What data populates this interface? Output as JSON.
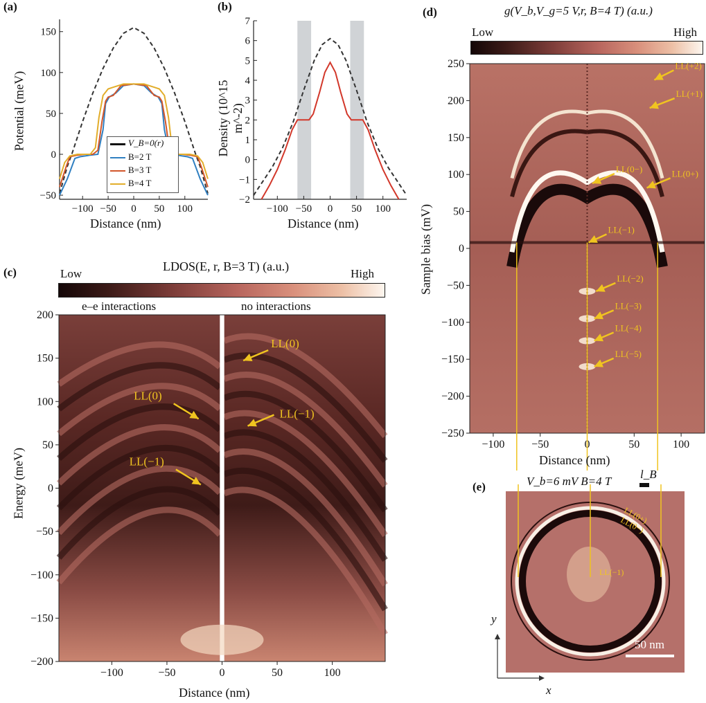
{
  "colors": {
    "dark": "#1d0c0c",
    "mid": "#b36b62",
    "light": "#fbf3ea",
    "line_b2": "#2f7fc1",
    "line_b3": "#d2562a",
    "line_b4": "#e2ad2a",
    "annotation": "#f0c420",
    "shade": "#d0d3d6"
  },
  "panel_a": {
    "label": "(a)",
    "ylabel": "Potential (meV)",
    "xlabel": "Distance (nm)",
    "legend": [
      "V_B=0(r)",
      "B=2 T",
      "B=3 T",
      "B=4 T"
    ]
  },
  "panel_b": {
    "label": "(b)",
    "ylabel": "Density (10^15 m^-2)",
    "xlabel": "Distance (nm)"
  },
  "panel_c": {
    "label": "(c)",
    "colorbar_title": "LDOS(E, r, B=3 T) (a.u.)",
    "colorbar_low": "Low",
    "colorbar_high": "High",
    "left_label": "e–e interactions",
    "right_label": "no interactions",
    "ylabel": "Energy (meV)",
    "xlabel": "Distance (nm)",
    "annotations": [
      "LL(0)",
      "LL(0)",
      "LL(−1)",
      "LL(−1)"
    ]
  },
  "panel_d": {
    "label": "(d)",
    "colorbar_title": "g(V_b,V_g=5 V,r, B=4 T) (a.u.)",
    "colorbar_low": "Low",
    "colorbar_high": "High",
    "ylabel": "Sample bias (mV)",
    "xlabel": "Distance (nm)",
    "annotations": [
      "LL(+2)",
      "LL(+1)",
      "LL(0−)",
      "LL(0+)",
      "LL(−1)",
      "LL(−2)",
      "LL(−3)",
      "LL(−4)",
      "LL(−5)"
    ]
  },
  "panel_e": {
    "label": "(e)",
    "title": "V_b=6 mV B=4 T",
    "lB_label": "l_B",
    "scalebar": "50 nm",
    "annotations": [
      "LL(0+)",
      "LL(0−)",
      "LL(−1)"
    ],
    "axis_x": "x",
    "axis_y": "y"
  },
  "chart_data": [
    {
      "type": "line",
      "panel": "a",
      "xlabel": "Distance (nm)",
      "ylabel": "Potential (meV)",
      "xlim": [
        -145,
        145
      ],
      "ylim": [
        -55,
        165
      ],
      "xticks": [
        -100,
        -50,
        0,
        50,
        100
      ],
      "yticks": [
        -50,
        0,
        50,
        100,
        150
      ],
      "legend_position": "bottom-right",
      "series": [
        {
          "name": "V_B=0(r)",
          "style": "dashed",
          "color": "#333333",
          "x": [
            -145,
            -130,
            -120,
            -100,
            -80,
            -60,
            -40,
            -20,
            0,
            20,
            40,
            60,
            80,
            100,
            120,
            130,
            145
          ],
          "y": [
            -48,
            -15,
            2,
            40,
            75,
            105,
            130,
            148,
            155,
            148,
            130,
            105,
            75,
            40,
            2,
            -15,
            -48
          ]
        },
        {
          "name": "B=2 T",
          "color": "#2f7fc1",
          "x": [
            -145,
            -130,
            -115,
            -105,
            -95,
            -85,
            -70,
            -60,
            -55,
            -48,
            -35,
            -20,
            0,
            20,
            35,
            48,
            55,
            60,
            70,
            85,
            95,
            105,
            115,
            130,
            145
          ],
          "y": [
            -50,
            -30,
            -5,
            -3,
            -2,
            -1,
            0,
            30,
            62,
            70,
            75,
            84,
            86,
            84,
            75,
            70,
            62,
            30,
            0,
            -1,
            -2,
            -3,
            -5,
            -30,
            -50
          ]
        },
        {
          "name": "B=3 T",
          "color": "#d2562a",
          "x": [
            -145,
            -132,
            -125,
            -110,
            -95,
            -80,
            -70,
            -62,
            -55,
            -50,
            -40,
            -25,
            0,
            25,
            40,
            50,
            55,
            62,
            70,
            80,
            95,
            110,
            125,
            132,
            145
          ],
          "y": [
            -40,
            -15,
            -3,
            -1,
            0,
            0,
            5,
            40,
            65,
            70,
            72,
            84,
            86,
            84,
            72,
            70,
            65,
            40,
            5,
            0,
            0,
            -1,
            -3,
            -15,
            -40
          ]
        },
        {
          "name": "B=4 T",
          "color": "#e2ad2a",
          "x": [
            -145,
            -135,
            -125,
            -110,
            -95,
            -85,
            -75,
            -68,
            -60,
            -50,
            -40,
            -20,
            0,
            20,
            40,
            50,
            60,
            68,
            75,
            85,
            95,
            110,
            125,
            135,
            145
          ],
          "y": [
            -30,
            -10,
            -2,
            0,
            0,
            0,
            8,
            45,
            72,
            80,
            82,
            86,
            86,
            86,
            82,
            80,
            72,
            45,
            8,
            0,
            0,
            0,
            -2,
            -10,
            -30
          ]
        }
      ]
    },
    {
      "type": "line",
      "panel": "b",
      "xlabel": "Distance (nm)",
      "ylabel": "Density (10^15 m^-2)",
      "xlim": [
        -145,
        145
      ],
      "ylim": [
        -2,
        7
      ],
      "xticks": [
        -100,
        -50,
        0,
        50,
        100
      ],
      "yticks": [
        -2,
        -1,
        0,
        1,
        2,
        3,
        4,
        5,
        6,
        7
      ],
      "shaded_x_ranges": [
        [
          -62,
          -36
        ],
        [
          38,
          64
        ]
      ],
      "series": [
        {
          "style": "dashed",
          "color": "#333333",
          "x": [
            -145,
            -130,
            -110,
            -90,
            -70,
            -50,
            -30,
            -15,
            0,
            15,
            30,
            50,
            70,
            90,
            110,
            130,
            145
          ],
          "y": [
            -1.8,
            -1.2,
            -0.4,
            0.6,
            1.9,
            3.5,
            5.0,
            5.8,
            6.1,
            5.8,
            5.0,
            3.5,
            1.9,
            0.6,
            -0.4,
            -1.2,
            -1.8
          ]
        },
        {
          "color": "#d2372a",
          "x": [
            -130,
            -115,
            -100,
            -85,
            -72,
            -62,
            -50,
            -40,
            -32,
            -20,
            -10,
            0,
            10,
            20,
            32,
            40,
            50,
            62,
            72,
            85,
            100,
            115,
            130
          ],
          "y": [
            -2.0,
            -1.3,
            -0.5,
            0.5,
            1.5,
            2.0,
            2.0,
            2.0,
            2.3,
            3.4,
            4.4,
            4.9,
            4.4,
            3.4,
            2.3,
            2.0,
            2.0,
            2.0,
            1.5,
            0.5,
            -0.5,
            -1.3,
            -2.0
          ]
        }
      ]
    },
    {
      "type": "heatmap",
      "panel": "c",
      "title": "LDOS(E, r, B=3 T) (a.u.)",
      "xlabel": "Distance (nm)",
      "ylabel": "Energy (meV)",
      "xlim": [
        -148,
        148
      ],
      "ylim": [
        -200,
        200
      ],
      "xticks": [
        -100,
        -50,
        0,
        50,
        100
      ],
      "yticks": [
        -200,
        -150,
        -100,
        -50,
        0,
        50,
        100,
        150,
        200
      ],
      "points": [
        {
          "label": "LL(0)",
          "x": 18,
          "y": 148
        },
        {
          "label": "LL(0)",
          "x": -20,
          "y": 80
        },
        {
          "label": "LL(−1)",
          "x": 22,
          "y": 75
        },
        {
          "label": "LL(−1)",
          "x": -18,
          "y": 4
        }
      ]
    },
    {
      "type": "heatmap",
      "panel": "d",
      "title": "g(V_b,V_g=5 V,r, B=4 T) (a.u.)",
      "xlabel": "Distance (nm)",
      "ylabel": "Sample bias (mV)",
      "xlim": [
        -125,
        125
      ],
      "ylim": [
        -250,
        250
      ],
      "xticks": [
        -100,
        -50,
        0,
        50,
        100
      ],
      "yticks": [
        -250,
        -200,
        -150,
        -100,
        -50,
        0,
        50,
        100,
        150,
        200,
        250
      ],
      "points": [
        {
          "label": "LL(+2)",
          "x": 70,
          "y": 228
        },
        {
          "label": "LL(+1)",
          "x": 65,
          "y": 190
        },
        {
          "label": "LL(0−)",
          "x": 4,
          "y": 88
        },
        {
          "label": "LL(0+)",
          "x": 62,
          "y": 82
        },
        {
          "label": "LL(−1)",
          "x": 0,
          "y": 8
        },
        {
          "label": "LL(−2)",
          "x": 8,
          "y": -58
        },
        {
          "label": "LL(−3)",
          "x": 6,
          "y": -95
        },
        {
          "label": "LL(−4)",
          "x": 6,
          "y": -125
        },
        {
          "label": "LL(−5)",
          "x": 6,
          "y": -160
        }
      ]
    }
  ]
}
